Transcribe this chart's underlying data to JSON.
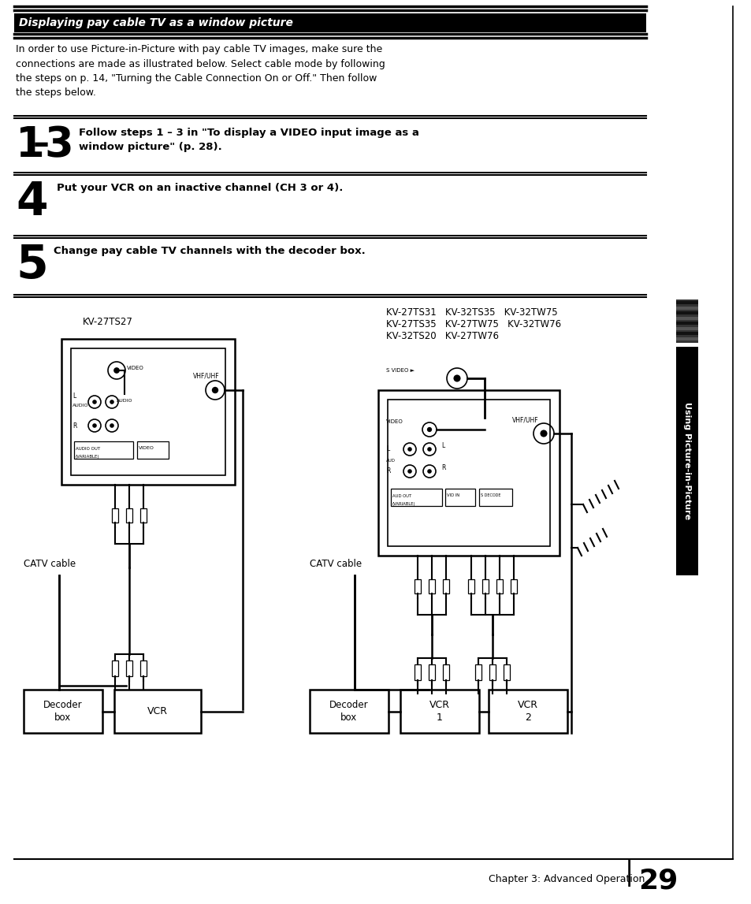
{
  "page_bg": "#ffffff",
  "title_text": "Displaying pay cable TV as a window picture",
  "intro_text": "In order to use Picture-in-Picture with pay cable TV images, make sure the\nconnections are made as illustrated below. Select cable mode by following\nthe steps on p. 14, \"Turning the Cable Connection On or Off.\" Then follow\nthe steps below.",
  "step1_text": "Follow steps 1 – 3 in \"To display a VIDEO input image as a\nwindow picture\" (p. 28).",
  "step4_text": "Put your VCR on an inactive channel (CH 3 or 4).",
  "step5_text": "Change pay cable TV channels with the decoder box.",
  "label_kv27ts27": "KV-27TS27",
  "label_kv_right_line1": "KV-27TS31   KV-32TS35   KV-32TW75",
  "label_kv_right_line2": "KV-27TS35   KV-27TW75   KV-32TW76",
  "label_kv_right_line3": "KV-32TS20   KV-27TW76",
  "label_catv_left": "CATV cable",
  "label_catv_right": "CATV cable",
  "label_decoder_left": "Decoder\nbox",
  "label_vcr_left": "VCR",
  "label_decoder_right": "Decoder\nbox",
  "label_vcr1_right": "VCR\n1",
  "label_vcr2_right": "VCR\n2",
  "side_label": "Using Picture-in-Picture",
  "footer_text": "Chapter 3: Advanced Operation",
  "footer_page": "29",
  "text_color": "#000000"
}
